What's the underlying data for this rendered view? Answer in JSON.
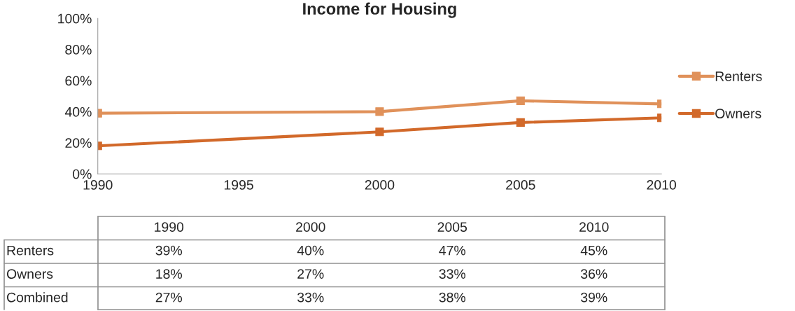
{
  "chart_data": [
    {
      "type": "line",
      "title": "Income for Housing",
      "x": [
        1990,
        2000,
        2005,
        2010
      ],
      "xlim": [
        1990,
        2010
      ],
      "xticks": [
        1990,
        1995,
        2000,
        2005,
        2010
      ],
      "ylim": [
        0,
        100
      ],
      "yticks": [
        {
          "value": 0,
          "label": "0%"
        },
        {
          "value": 20,
          "label": "20%"
        },
        {
          "value": 40,
          "label": "40%"
        },
        {
          "value": 60,
          "label": "60%"
        },
        {
          "value": 80,
          "label": "80%"
        },
        {
          "value": 100,
          "label": "100%"
        }
      ],
      "series": [
        {
          "name": "Renters",
          "color": "#e0915a",
          "values": [
            39,
            40,
            47,
            45
          ]
        },
        {
          "name": "Owners",
          "color": "#d2692a",
          "values": [
            18,
            27,
            33,
            36
          ]
        }
      ],
      "marker": "square",
      "line_style": "solid",
      "grid": false,
      "legend": "right"
    },
    {
      "type": "other",
      "categories": [
        "1990",
        "2000",
        "2005",
        "2010"
      ],
      "series": [
        {
          "name": "Renters",
          "values": [
            39,
            40,
            47,
            45
          ],
          "value_labels": [
            "39%",
            "40%",
            "47%",
            "45%"
          ]
        },
        {
          "name": "Owners",
          "values": [
            18,
            27,
            33,
            36
          ],
          "value_labels": [
            "18%",
            "27%",
            "33%",
            "36%"
          ]
        },
        {
          "name": "Combined",
          "values": [
            27,
            33,
            38,
            39
          ],
          "value_labels": [
            "27%",
            "33%",
            "38%",
            "39%"
          ]
        }
      ]
    }
  ]
}
